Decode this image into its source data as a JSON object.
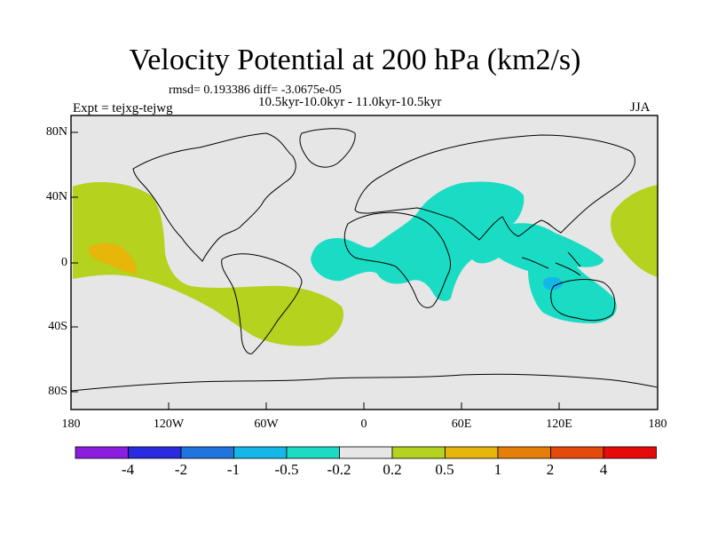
{
  "title": "Velocity Potential at 200 hPa (km2/s)",
  "stats_line": "rmsd= 0.193386 diff= -3.0675e-05",
  "experiment": "Expt = tejxg-tejwg",
  "period": "10.5kyr-10.0kyr - 11.0kyr-10.5kyr",
  "season": "JJA",
  "lat_ticks": [
    "80N",
    "40N",
    "0",
    "40S",
    "80S"
  ],
  "lon_ticks": [
    "180",
    "120W",
    "60W",
    "0",
    "60E",
    "120E",
    "180"
  ],
  "colorbar": {
    "colors": [
      "#8a1de0",
      "#2a2ae0",
      "#1f74e0",
      "#14b8e8",
      "#1adcc4",
      "#e6e6e6",
      "#b4d21e",
      "#e6b60a",
      "#e67e0a",
      "#e64a0a",
      "#e60a0a"
    ],
    "labels": [
      "-4",
      "-2",
      "-1",
      "-0.5",
      "-0.2",
      "0.2",
      "0.5",
      "1",
      "2",
      "4"
    ]
  },
  "map": {
    "background_color": "#e6e6e6",
    "anomaly_regions": [
      {
        "level": "0.2 to 0.5",
        "color": "#b4d21e",
        "area": "central/eastern Pacific and South America to South Atlantic"
      },
      {
        "level": "0.5 to 1",
        "color": "#e6b60a",
        "area": "central Pacific near 15N"
      },
      {
        "level": "-0.5 to -0.2",
        "color": "#1adcc4",
        "area": "Africa, Asia, Indian Ocean, Maritime Continent and Australia"
      },
      {
        "level": "-1 to -0.5",
        "color": "#14b8e8",
        "area": "south of Indonesia"
      },
      {
        "level": "0.2 to 0.5",
        "color": "#b4d21e",
        "area": "western Pacific near dateline"
      }
    ]
  }
}
